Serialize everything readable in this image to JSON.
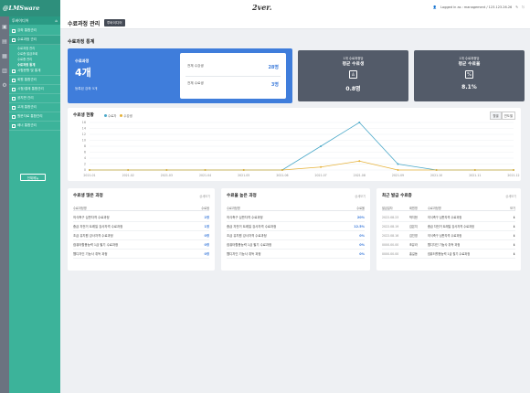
{
  "logo": "@LMSware",
  "sidebar": {
    "org": "투바이디어",
    "items": [
      {
        "label": "강좌 통합관리",
        "open": false
      },
      {
        "label": "수료과정 관리",
        "open": true,
        "subs": [
          "수료과정 관리",
          "수료증 발급조회",
          "수료증 관리",
          "수료과정 통계"
        ],
        "active_sub": 3
      },
      {
        "label": "시험문항 및 통계",
        "open": false
      },
      {
        "label": "회원 통합관리",
        "open": false
      },
      {
        "label": "시청/결제 통합관리",
        "open": false
      },
      {
        "label": "공지판 관리",
        "open": false
      },
      {
        "label": "교재 통합관리",
        "open": false
      },
      {
        "label": "원문자료 통합관리",
        "open": false
      },
      {
        "label": "배너 통합관리",
        "open": false
      }
    ],
    "button": "전체메뉴"
  },
  "header": {
    "brand": "2ver.",
    "user": "Logged in as : management / 123.123.26.26"
  },
  "title": {
    "text": "수료과정 관리",
    "tag": "투바이디어"
  },
  "section_title": "수료과정 통계",
  "blue_card": {
    "label": "수료과정",
    "value": "4개",
    "note": "등록된 강좌 5개",
    "rows": [
      {
        "label": "전체 수강생",
        "value": "28명"
      },
      {
        "label": "전체 수료생",
        "value": "3명"
      }
    ]
  },
  "dark_cards": [
    {
      "small": "1개 수료과정당",
      "title": "평균 수료생",
      "value": "0.8명",
      "icon": "user-icon"
    },
    {
      "small": "1개 수료과정당",
      "title": "평균 수료율",
      "value": "8.1%",
      "icon": "percent-icon"
    }
  ],
  "chart_card": {
    "title": "수료생 현황",
    "legend": [
      {
        "name": "수료자",
        "color": "#4aa8c8"
      },
      {
        "name": "수강생",
        "color": "#e6b23a"
      }
    ],
    "toggle": [
      "월별",
      "연도별"
    ]
  },
  "chart_data": {
    "type": "line",
    "x": [
      "2021.01",
      "2021.02",
      "2021.03",
      "2021.04",
      "2021.05",
      "2021.06",
      "2021.07",
      "2021.08",
      "2021.09",
      "2021.10",
      "2021.11",
      "2021.12"
    ],
    "series": [
      {
        "name": "수료자",
        "color": "#4aa8c8",
        "values": [
          0,
          0,
          0,
          0,
          0,
          0,
          8,
          16,
          2,
          0,
          0,
          0
        ]
      },
      {
        "name": "수강생",
        "color": "#e6b23a",
        "values": [
          0,
          0,
          0,
          0,
          0,
          0,
          1,
          3,
          0,
          0,
          0,
          0
        ]
      }
    ],
    "yticks": [
      0,
      2,
      4,
      6,
      8,
      10,
      12,
      14,
      16
    ],
    "ylim": [
      0,
      16
    ],
    "grid": true
  },
  "panels": {
    "low": {
      "title": "수료생 많은 과정",
      "more": "상세보기",
      "head": [
        "수료과정명",
        "수료생"
      ],
      "rows": [
        {
          "name": "의식축구 심판자격 수료과정",
          "value": "2명"
        },
        {
          "name": "중급 자전거 트레일 강사자격 수료과정",
          "value": "1명"
        },
        {
          "name": "초급 유치원 강사자격 수료과정",
          "value": "0명"
        },
        {
          "name": "컴퓨터활용능력 1급 필기 수료과정",
          "value": "0명"
        },
        {
          "name": "웹디자인 기능사 취득 과정",
          "value": "0명"
        }
      ]
    },
    "high": {
      "title": "수료율 높은 과정",
      "more": "상세보기",
      "head": [
        "수료과정명",
        "수료율"
      ],
      "rows": [
        {
          "name": "의식축구 심판자격 수료과정",
          "value": "20%"
        },
        {
          "name": "중급 자전거 트레일 강사자격 수료과정",
          "value": "12.5%"
        },
        {
          "name": "초급 유치원 강사자격 수료과정",
          "value": "0%"
        },
        {
          "name": "컴퓨터활용능력 1급 필기 수료과정",
          "value": "0%"
        },
        {
          "name": "웹디자인 기능사 취득 과정",
          "value": "0%"
        }
      ]
    },
    "recent": {
      "title": "최근 발급 수료증",
      "more": "상세보기",
      "head": [
        "발급일자",
        "회원명",
        "수료과정명",
        "보기"
      ],
      "rows": [
        {
          "date": "2022.08.23",
          "name": "박지현",
          "course": "의식축구 심판자격 수료과정"
        },
        {
          "date": "2022.08.19",
          "name": "김은지",
          "course": "중급 자전거 트레일 강사자격 수료과정"
        },
        {
          "date": "2022.08.16",
          "name": "김진영",
          "course": "의식축구 심판자격 수료과정"
        },
        {
          "date": "0000.00.00",
          "name": "조유라",
          "course": "웹디자인 기능사 취득 과정"
        },
        {
          "date": "0000.00.00",
          "name": "홍길동",
          "course": "컴퓨터활용능력 1급 필기 수료과정"
        }
      ]
    }
  }
}
